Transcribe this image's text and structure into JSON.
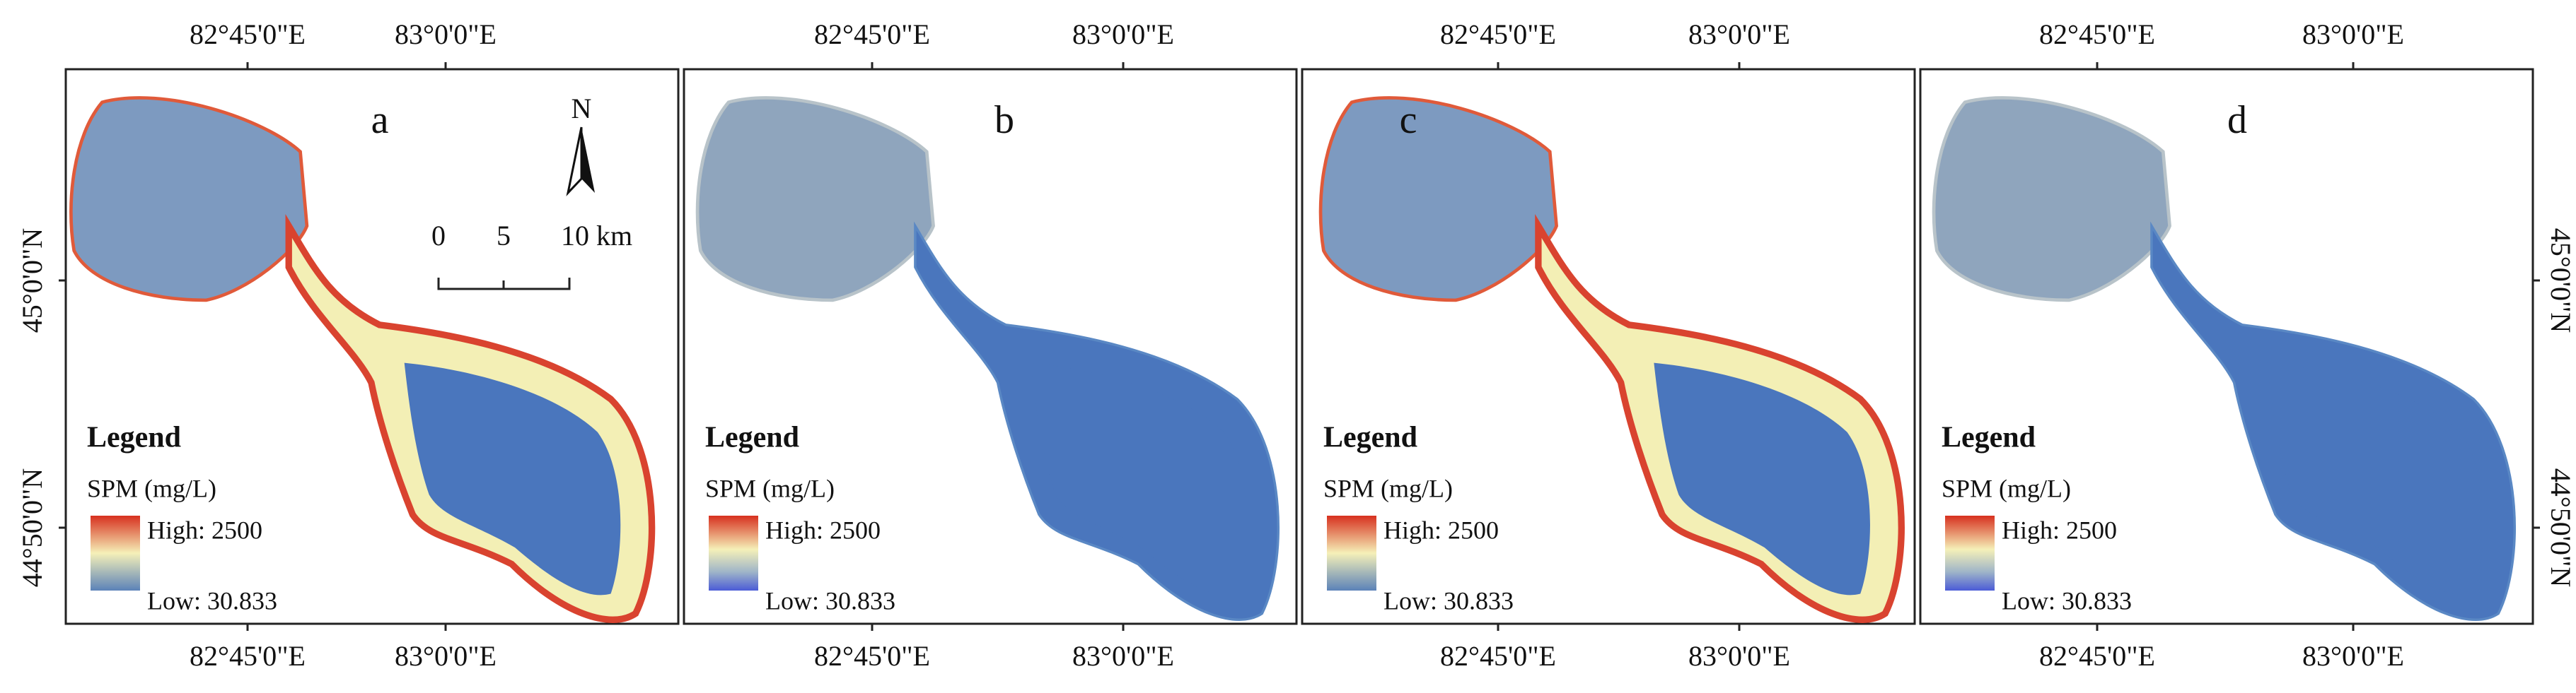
{
  "panels": [
    {
      "label": "a",
      "top_lon_labels": [
        "82°45'0\"E",
        "83°0'0\"E"
      ],
      "bottom_lon_labels": [
        "82°45'0\"E",
        "83°0'0\"E"
      ],
      "legend": {
        "title": "Legend",
        "quantity": "SPM (mg/L)",
        "high": "High: 2500",
        "low": "Low: 30.833"
      }
    },
    {
      "label": "b",
      "top_lon_labels": [
        "82°45'0\"E",
        "83°0'0\"E"
      ],
      "bottom_lon_labels": [
        "82°45'0\"E",
        "83°0'0\"E"
      ],
      "legend": {
        "title": "Legend",
        "quantity": "SPM (mg/L)",
        "high": "High: 2500",
        "low": "Low: 30.833"
      }
    },
    {
      "label": "c",
      "top_lon_labels": [
        "82°45'0\"E",
        "83°0'0\"E"
      ],
      "bottom_lon_labels": [
        "82°45'0\"E",
        "83°0'0\"E"
      ],
      "legend": {
        "title": "Legend",
        "quantity": "SPM (mg/L)",
        "high": "High: 2500",
        "low": "Low: 30.833"
      }
    },
    {
      "label": "d",
      "top_lon_labels": [
        "82°45'0\"E",
        "83°0'0\"E"
      ],
      "bottom_lon_labels": [
        "82°45'0\"E",
        "83°0'0\"E"
      ],
      "legend": {
        "title": "Legend",
        "quantity": "SPM (mg/L)",
        "high": "High: 2500",
        "low": "Low: 30.833"
      }
    }
  ],
  "left_lat_labels": [
    "45°0'0\"N",
    "44°50'0\"N"
  ],
  "right_lat_labels": [
    "45°0'0\"N",
    "44°50'0\"N"
  ],
  "north_arrow": "N",
  "scale_bar": [
    "0",
    "5",
    "10 km"
  ]
}
